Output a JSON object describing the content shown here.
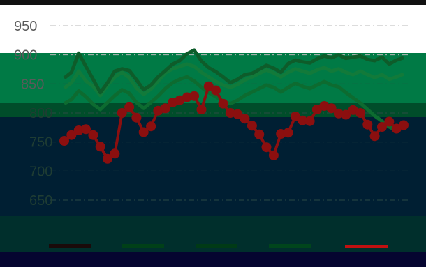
{
  "chart_data": {
    "type": "line",
    "y_ticks": [
      950,
      900,
      850,
      800,
      750,
      700,
      650
    ],
    "ylim": [
      640,
      962
    ],
    "n_points": 48,
    "grid": "dash-dot horizontal",
    "series": [
      {
        "key": "red",
        "color": "#8b0f0f",
        "marker": "circle",
        "values": [
          752,
          762,
          770,
          772,
          762,
          742,
          721,
          730,
          800,
          810,
          792,
          767,
          777,
          804,
          808,
          818,
          822,
          827,
          829,
          806,
          846,
          839,
          816,
          800,
          798,
          790,
          778,
          763,
          741,
          727,
          764,
          766,
          794,
          787,
          786,
          806,
          812,
          808,
          799,
          797,
          805,
          800,
          780,
          760,
          776,
          785,
          773,
          779
        ]
      },
      {
        "key": "green1",
        "color": "#0e5c2a",
        "marker": "none",
        "values": [
          860,
          870,
          903,
          880,
          858,
          835,
          852,
          872,
          876,
          873,
          857,
          840,
          848,
          862,
          873,
          884,
          890,
          902,
          908,
          889,
          878,
          871,
          862,
          852,
          858,
          866,
          868,
          875,
          882,
          877,
          870,
          885,
          891,
          888,
          886,
          893,
          898,
          895,
          900,
          894,
          896,
          898,
          892,
          890,
          896,
          884,
          891,
          895
        ]
      },
      {
        "key": "green2",
        "color": "#127a3a",
        "marker": "none",
        "values": [
          843,
          852,
          872,
          855,
          846,
          830,
          848,
          862,
          870,
          861,
          843,
          832,
          841,
          855,
          869,
          876,
          880,
          884,
          880,
          870,
          862,
          854,
          848,
          844,
          849,
          857,
          862,
          868,
          874,
          869,
          862,
          870,
          876,
          872,
          868,
          874,
          878,
          872,
          876,
          870,
          866,
          872,
          866,
          861,
          866,
          858,
          862,
          867
        ]
      },
      {
        "key": "green3",
        "color": "#0d6b30",
        "marker": "none",
        "values": [
          816,
          823,
          838,
          828,
          815,
          806,
          818,
          830,
          840,
          834,
          818,
          808,
          818,
          829,
          842,
          852,
          858,
          862,
          855,
          844,
          835,
          828,
          820,
          816,
          822,
          830,
          836,
          842,
          848,
          844,
          836,
          844,
          851,
          846,
          842,
          848,
          854,
          848,
          845,
          835,
          826,
          817,
          806,
          795,
          786,
          776,
          770,
          780
        ]
      }
    ]
  }
}
